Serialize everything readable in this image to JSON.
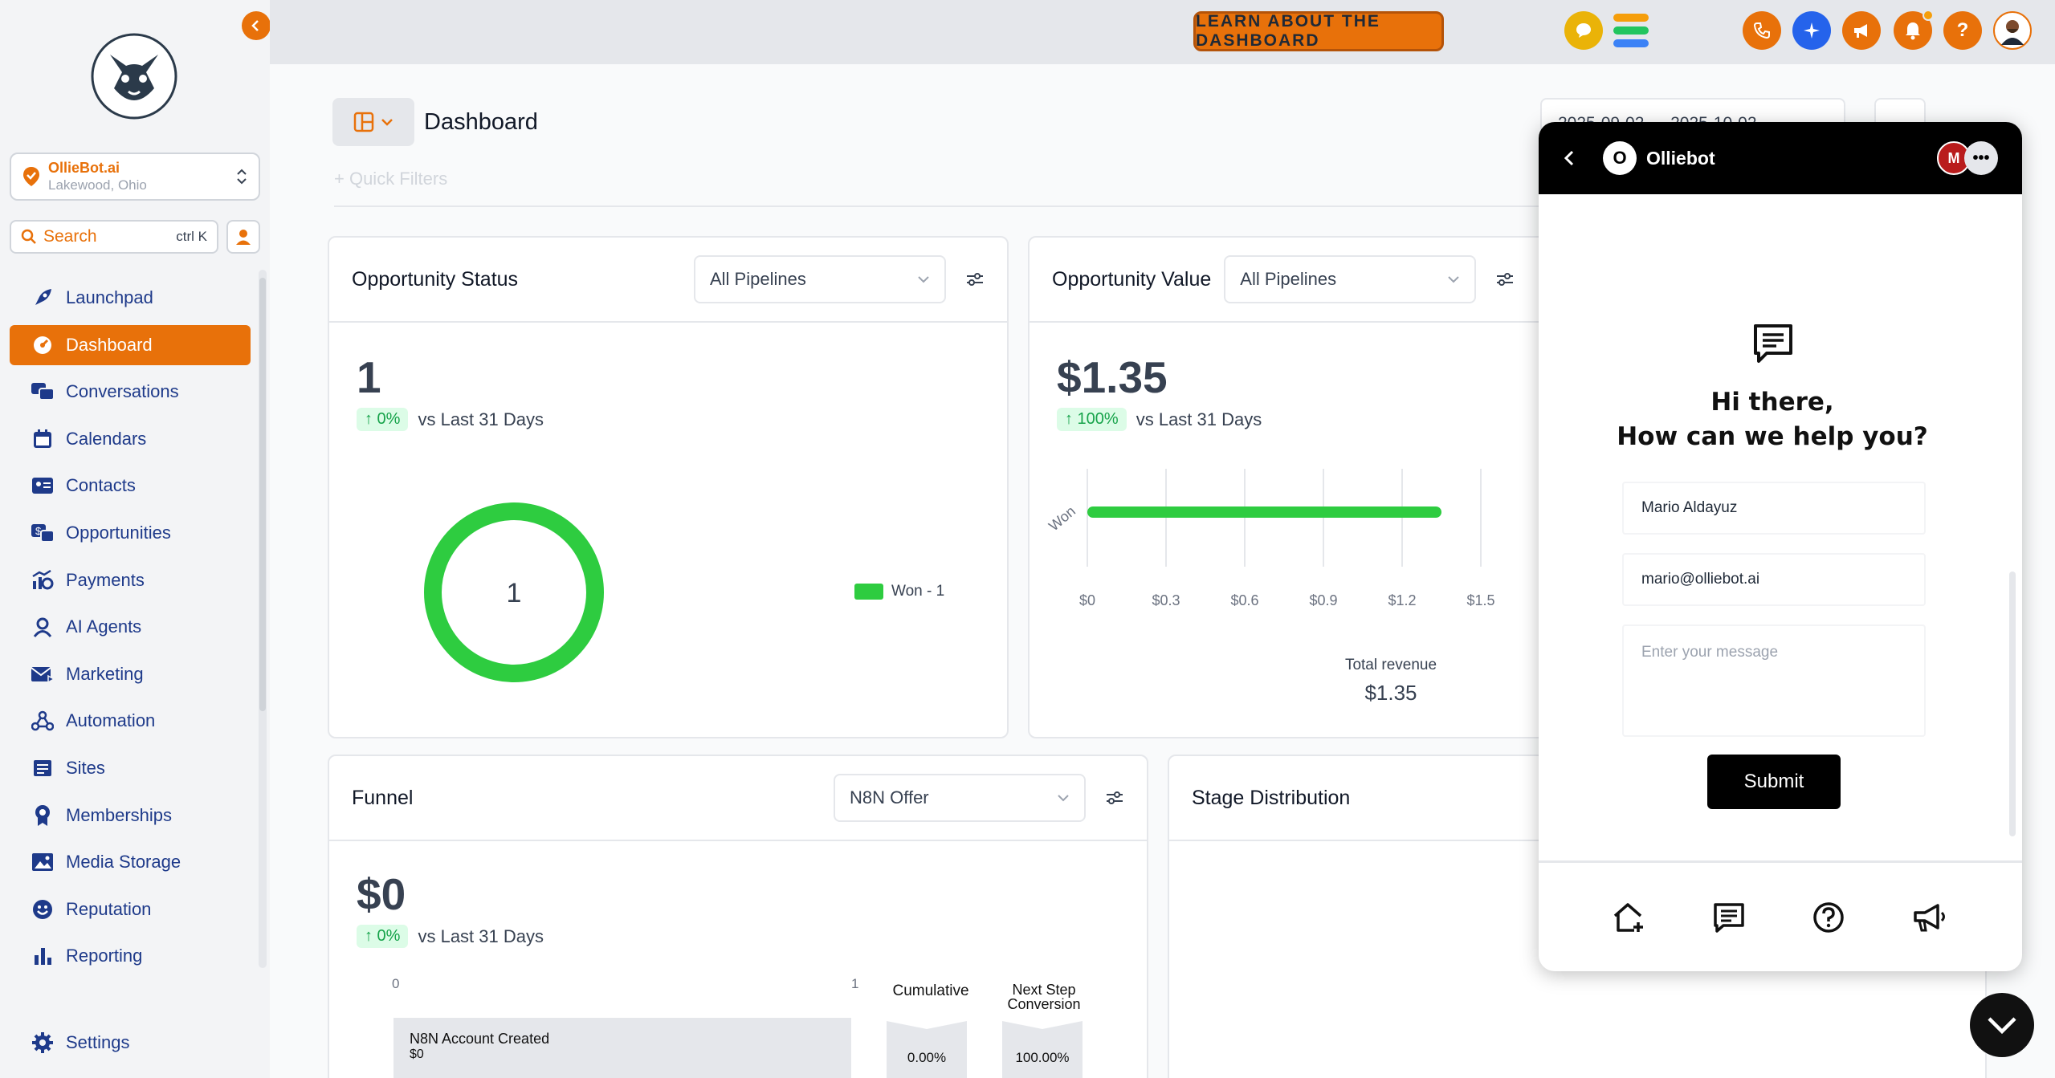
{
  "sidebar": {
    "location": {
      "name": "OllieBot.ai",
      "sub": "Lakewood, Ohio"
    },
    "search": {
      "label": "Search",
      "shortcut": "ctrl K"
    },
    "items": [
      {
        "label": "Launchpad",
        "icon": "rocket-icon"
      },
      {
        "label": "Dashboard",
        "icon": "gauge-icon",
        "active": true
      },
      {
        "label": "Conversations",
        "icon": "chat-icon"
      },
      {
        "label": "Calendars",
        "icon": "calendar-icon"
      },
      {
        "label": "Contacts",
        "icon": "contact-card-icon"
      },
      {
        "label": "Opportunities",
        "icon": "dollar-chat-icon"
      },
      {
        "label": "Payments",
        "icon": "payments-chart-icon"
      },
      {
        "label": "AI Agents",
        "icon": "agent-icon"
      },
      {
        "label": "Marketing",
        "icon": "mail-send-icon"
      },
      {
        "label": "Automation",
        "icon": "workflow-icon"
      },
      {
        "label": "Sites",
        "icon": "sites-icon"
      },
      {
        "label": "Memberships",
        "icon": "badge-icon"
      },
      {
        "label": "Media Storage",
        "icon": "image-icon"
      },
      {
        "label": "Reputation",
        "icon": "smile-icon"
      },
      {
        "label": "Reporting",
        "icon": "bar-chart-icon"
      }
    ],
    "settings_label": "Settings"
  },
  "topbar": {
    "learn_label": "LEARN ABOUT THE DASHBOARD"
  },
  "main": {
    "title": "Dashboard",
    "quick_filters": "+ Quick Filters",
    "date_range": "2025-09-02  →  2025-10-02",
    "opportunity_status": {
      "title": "Opportunity Status",
      "pipeline": "All Pipelines",
      "value": "1",
      "delta": "↑ 0%",
      "compare": "vs Last 31 Days",
      "donut_center": "1",
      "legend": "Won - 1"
    },
    "opportunity_value": {
      "title": "Opportunity Value",
      "pipeline": "All Pipelines",
      "value": "$1.35",
      "delta": "↑ 100%",
      "compare": "vs Last 31 Days",
      "total_label": "Total revenue",
      "total_value": "$1.35"
    },
    "funnel": {
      "title": "Funnel",
      "pipeline": "N8N Offer",
      "value": "$0",
      "delta": "↑ 0%",
      "compare": "vs Last 31 Days",
      "axis_min": "0",
      "axis_max": "1",
      "col_cumulative": "Cumulative",
      "col_next_1": "Next Step",
      "col_next_2": "Conversion",
      "stage_name": "N8N Account Created",
      "stage_value": "$0",
      "cumulative_pct": "0.00%",
      "next_pct": "100.00%"
    },
    "stage_distribution": {
      "title": "Stage Distribution"
    }
  },
  "chart_data": {
    "type": "bar",
    "orientation": "horizontal",
    "categories": [
      "Won"
    ],
    "values": [
      1.35
    ],
    "xlim": [
      0,
      1.5
    ],
    "xticks": [
      "$0",
      "$0.3",
      "$0.6",
      "$0.9",
      "$1.2",
      "$1.5"
    ],
    "grid": true,
    "color": "#2ecc40"
  },
  "chat": {
    "name": "Olliebot",
    "brand_initial": "O",
    "avatar_initial": "M",
    "greeting_1": "Hi there,",
    "greeting_2": "How can we help you?",
    "name_value": "Mario Aldayuz",
    "email_value": "mario@olliebot.ai",
    "message_placeholder": "Enter your message",
    "submit_label": "Submit"
  },
  "colors": {
    "accent": "#e8710a",
    "success": "#2ecc40",
    "nav_text": "#1e3a8a"
  }
}
